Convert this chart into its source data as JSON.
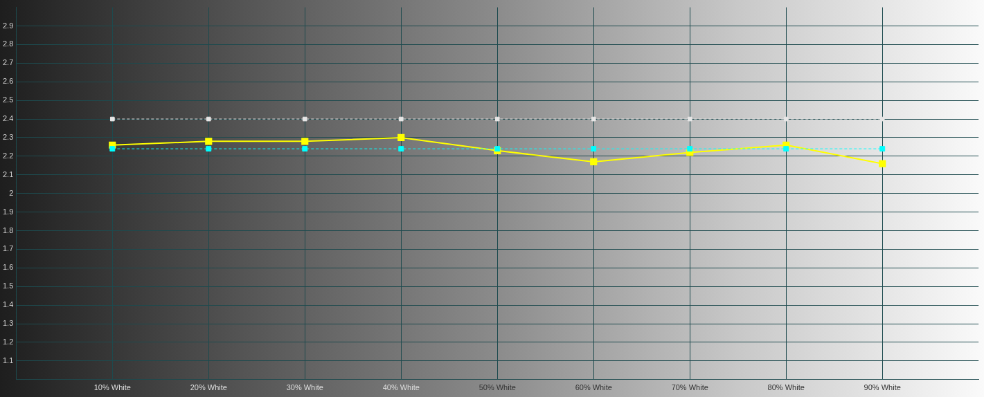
{
  "chart_data": {
    "type": "line",
    "x": [
      10,
      20,
      30,
      40,
      50,
      60,
      70,
      80,
      90
    ],
    "series": [
      {
        "color": "#e6e6e6",
        "line_style": "dashed",
        "values": [
          2.4,
          2.4,
          2.4,
          2.4,
          2.4,
          2.4,
          2.4,
          2.4,
          2.4
        ]
      },
      {
        "color": "#00ffff",
        "line_style": "dashed",
        "values": [
          2.24,
          2.24,
          2.24,
          2.24,
          2.24,
          2.24,
          2.24,
          2.24,
          2.24
        ]
      },
      {
        "color": "#ffff00",
        "line_style": "solid",
        "values": [
          2.26,
          2.28,
          2.28,
          2.3,
          2.23,
          2.17,
          2.22,
          2.26,
          2.16
        ]
      }
    ],
    "xlim": [
      0,
      100
    ],
    "xticks": [
      {
        "value": 10,
        "label": "10% White"
      },
      {
        "value": 20,
        "label": "20% White"
      },
      {
        "value": 30,
        "label": "30% White"
      },
      {
        "value": 40,
        "label": "40% White"
      },
      {
        "value": 50,
        "label": "50% White"
      },
      {
        "value": 60,
        "label": "60% White"
      },
      {
        "value": 70,
        "label": "70% White"
      },
      {
        "value": 80,
        "label": "80% White"
      },
      {
        "value": 90,
        "label": "90% White"
      }
    ],
    "ylim": [
      1,
      3
    ],
    "yticks": [
      1.1,
      1.2,
      1.3,
      1.4,
      1.5,
      1.6,
      1.7,
      1.8,
      1.9,
      2,
      2.1,
      2.2,
      2.3,
      2.4,
      2.5,
      2.6,
      2.7,
      2.8,
      2.9
    ],
    "grid": true,
    "legend": false,
    "marker": "square"
  }
}
